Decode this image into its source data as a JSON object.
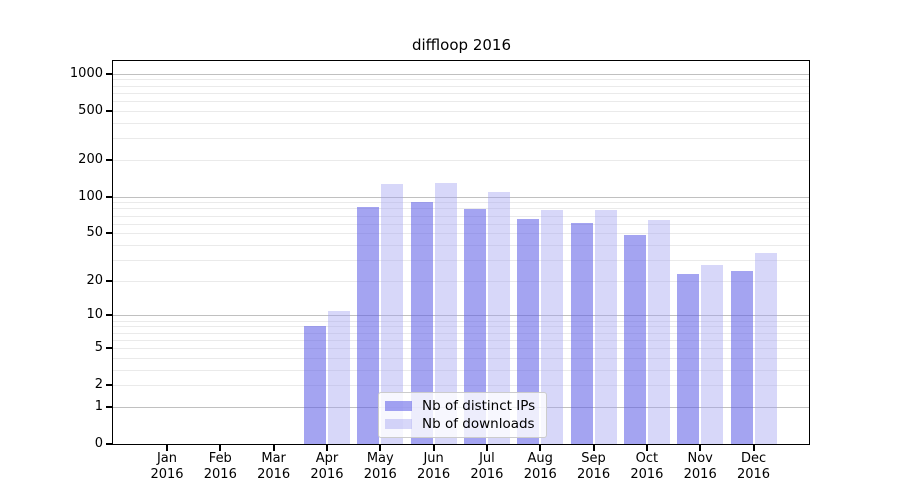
{
  "chart_data": {
    "type": "bar",
    "title": "diffloop 2016",
    "scale": "log1p",
    "grid": "on",
    "legend_position": "lower center",
    "year": "2016",
    "categories": [
      "Jan",
      "Feb",
      "Mar",
      "Apr",
      "May",
      "Jun",
      "Jul",
      "Aug",
      "Sep",
      "Oct",
      "Nov",
      "Dec"
    ],
    "series": [
      {
        "name": "Nb of distinct IPs",
        "color": "#5a5ae6",
        "alpha": 0.55,
        "values": [
          0,
          0,
          0,
          8,
          82,
          90,
          79,
          66,
          61,
          48,
          23,
          24
        ]
      },
      {
        "name": "Nb of downloads",
        "color": "#a0a0f0",
        "alpha": 0.42,
        "values": [
          0,
          0,
          0,
          11,
          127,
          130,
          110,
          77,
          77,
          64,
          27,
          34
        ]
      }
    ],
    "y_ticks": [
      0,
      1,
      2,
      5,
      10,
      20,
      50,
      100,
      200,
      500,
      1000
    ],
    "y_major_gridlines": [
      1,
      10,
      100,
      1000
    ],
    "ylim": [
      0,
      1259
    ],
    "xlabel": "",
    "ylabel": "",
    "colors": {
      "bar_dark_rendered": "#a8a8f0",
      "bar_light_rendered": "#d9d9f7",
      "major_grid": "#c0c0c0",
      "minor_grid": "#eaeaea",
      "axis": "#000000",
      "legend_border": "#cccccc"
    }
  }
}
